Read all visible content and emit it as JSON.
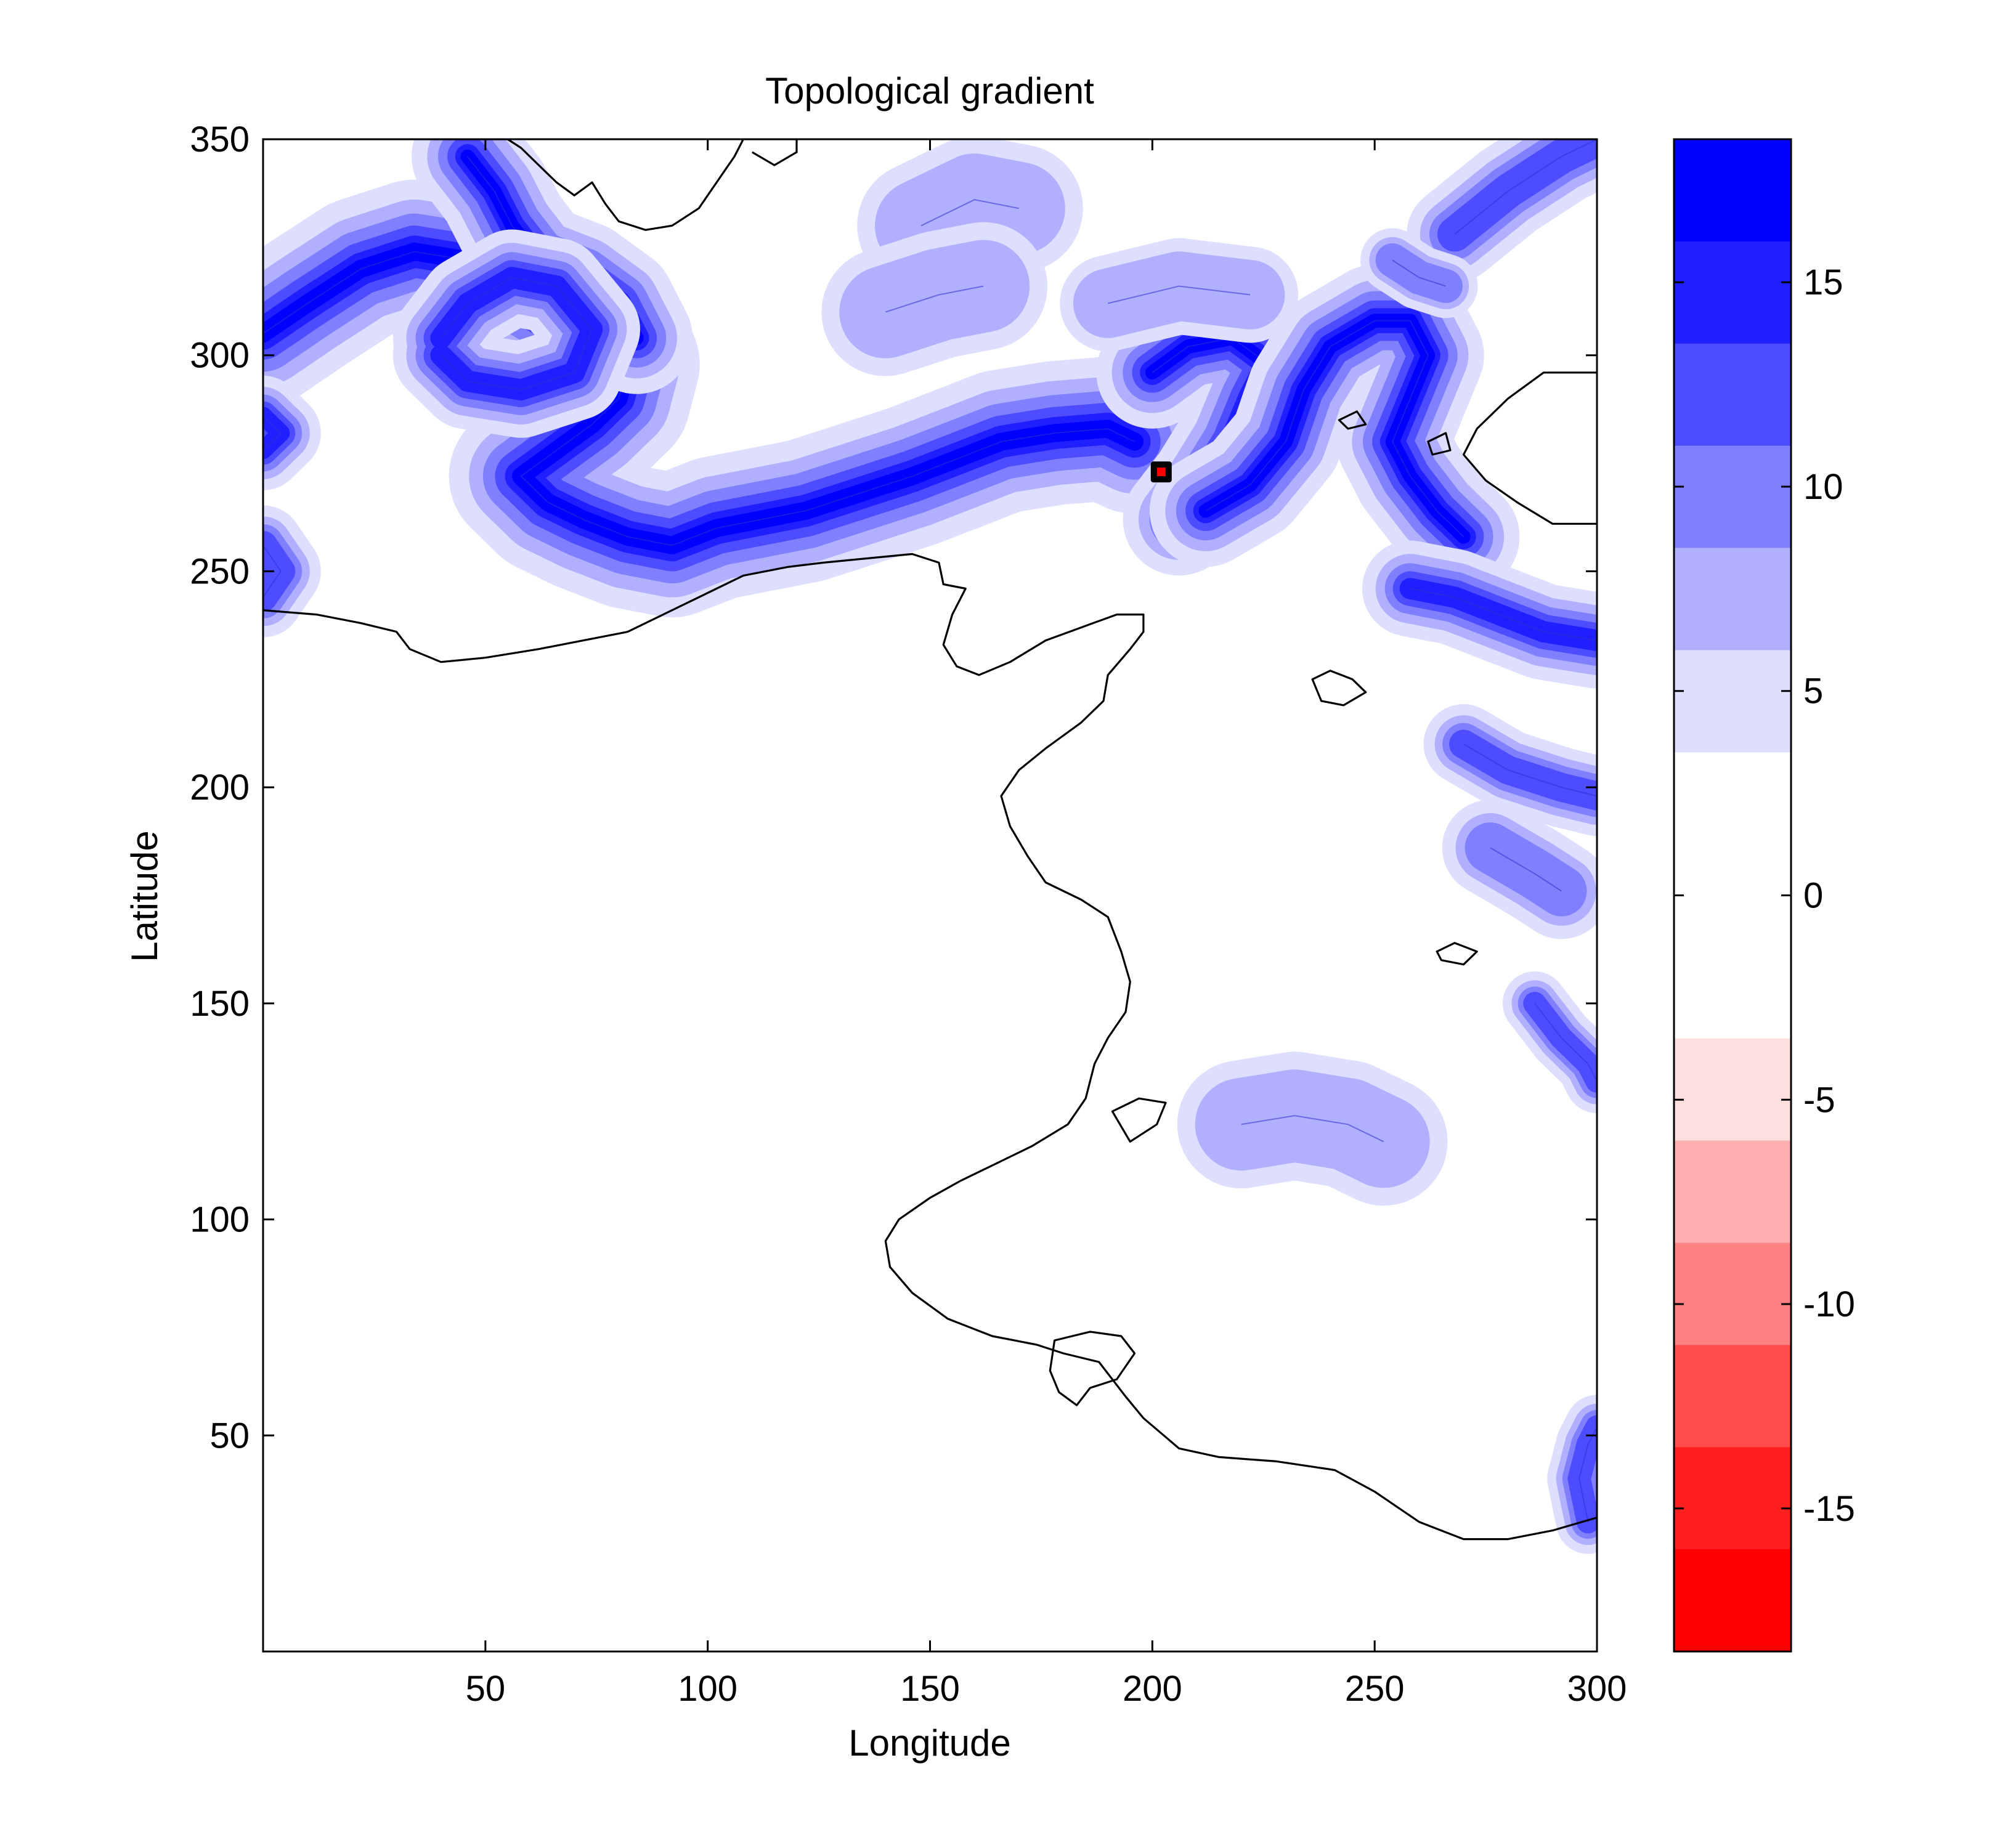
{
  "chart_data": {
    "type": "heatmap",
    "subtype": "filled-contour-map",
    "title": "Topological gradient",
    "xlabel": "Longitude",
    "ylabel": "Latitude",
    "xlim": [
      0,
      300
    ],
    "ylim": [
      0,
      350
    ],
    "xticks": [
      50,
      100,
      150,
      200,
      250,
      300
    ],
    "yticks": [
      50,
      100,
      150,
      200,
      250,
      300,
      350
    ],
    "colorbar": {
      "range": [
        -18.5,
        18.5
      ],
      "ticks": [
        -15,
        -10,
        -5,
        0,
        5,
        10,
        15
      ],
      "levels": [
        {
          "from": 16.0,
          "to": 18.5,
          "color": "#0000ff"
        },
        {
          "from": 13.5,
          "to": 16.0,
          "color": "#1f1fff"
        },
        {
          "from": 11.0,
          "to": 13.5,
          "color": "#4d4dff"
        },
        {
          "from": 8.5,
          "to": 11.0,
          "color": "#8080ff"
        },
        {
          "from": 6.0,
          "to": 8.5,
          "color": "#b0b0ff"
        },
        {
          "from": 3.5,
          "to": 6.0,
          "color": "#dedeff"
        },
        {
          "from": -3.5,
          "to": 3.5,
          "color": "#ffffff"
        },
        {
          "from": -6.0,
          "to": -3.5,
          "color": "#ffdede"
        },
        {
          "from": -8.5,
          "to": -6.0,
          "color": "#ffb0b0"
        },
        {
          "from": -11.0,
          "to": -8.5,
          "color": "#ff8080"
        },
        {
          "from": -13.5,
          "to": -11.0,
          "color": "#ff4d4d"
        },
        {
          "from": -16.0,
          "to": -13.5,
          "color": "#ff1f1f"
        },
        {
          "from": -18.5,
          "to": -16.0,
          "color": "#ff0000"
        }
      ]
    },
    "marker": {
      "x": 202,
      "y": 273,
      "color": "#ff0000"
    },
    "coastline": [
      [
        [
          0,
          241
        ],
        [
          12,
          240
        ],
        [
          22,
          238
        ],
        [
          30,
          236
        ],
        [
          33,
          232
        ],
        [
          40,
          229
        ],
        [
          50,
          230
        ],
        [
          62,
          232
        ],
        [
          72,
          234
        ],
        [
          82,
          236
        ],
        [
          92,
          241
        ],
        [
          100,
          245
        ],
        [
          108,
          249
        ],
        [
          118,
          251
        ],
        [
          126,
          252
        ],
        [
          136,
          253
        ],
        [
          146,
          254
        ],
        [
          152,
          252
        ],
        [
          153,
          247
        ],
        [
          158,
          246
        ],
        [
          155,
          240
        ],
        [
          153,
          233
        ],
        [
          156,
          228
        ],
        [
          161,
          226
        ],
        [
          168,
          229
        ],
        [
          176,
          234
        ],
        [
          184,
          237
        ],
        [
          192,
          240
        ],
        [
          198,
          240
        ],
        [
          198,
          236
        ],
        [
          195,
          232
        ],
        [
          190,
          226
        ],
        [
          189,
          220
        ],
        [
          184,
          215
        ],
        [
          176,
          209
        ],
        [
          170,
          204
        ],
        [
          166,
          198
        ],
        [
          168,
          191
        ],
        [
          172,
          184
        ],
        [
          176,
          178
        ],
        [
          184,
          174
        ],
        [
          190,
          170
        ],
        [
          193,
          162
        ],
        [
          195,
          155
        ],
        [
          194,
          148
        ],
        [
          190,
          142
        ],
        [
          187,
          136
        ],
        [
          185,
          128
        ],
        [
          181,
          122
        ],
        [
          173,
          117
        ],
        [
          165,
          113
        ],
        [
          157,
          109
        ],
        [
          150,
          105
        ],
        [
          143,
          100
        ],
        [
          140,
          95
        ],
        [
          141,
          89
        ],
        [
          146,
          83
        ],
        [
          154,
          77
        ],
        [
          164,
          73
        ],
        [
          174,
          71
        ],
        [
          180,
          69
        ],
        [
          188,
          67
        ],
        [
          194,
          59
        ],
        [
          198,
          54
        ],
        [
          206,
          47
        ],
        [
          215,
          45
        ],
        [
          228,
          44
        ],
        [
          241,
          42
        ],
        [
          250,
          37
        ],
        [
          260,
          30
        ],
        [
          270,
          26
        ],
        [
          280,
          26
        ],
        [
          290,
          28
        ],
        [
          300,
          31
        ]
      ],
      [
        [
          0,
          350
        ],
        [
          55,
          350
        ],
        [
          58,
          348
        ],
        [
          62,
          344
        ],
        [
          66,
          340
        ],
        [
          70,
          337
        ],
        [
          74,
          340
        ],
        [
          77,
          335
        ],
        [
          80,
          331
        ],
        [
          86,
          329
        ],
        [
          92,
          330
        ],
        [
          98,
          334
        ],
        [
          102,
          340
        ],
        [
          106,
          346
        ],
        [
          108,
          350
        ],
        [
          120,
          350
        ],
        [
          120,
          347
        ],
        [
          115,
          344
        ],
        [
          110,
          347
        ]
      ],
      [
        [
          300,
          296
        ],
        [
          288,
          296
        ],
        [
          280,
          290
        ],
        [
          273,
          283
        ],
        [
          270,
          277
        ],
        [
          275,
          271
        ],
        [
          282,
          266
        ],
        [
          290,
          261
        ],
        [
          300,
          261
        ]
      ],
      [
        [
          236,
          225
        ],
        [
          240,
          227
        ],
        [
          245,
          225
        ],
        [
          248,
          222
        ],
        [
          243,
          219
        ],
        [
          238,
          220
        ]
      ],
      [
        [
          264,
          162
        ],
        [
          268,
          164
        ],
        [
          273,
          162
        ],
        [
          270,
          159
        ],
        [
          265,
          160
        ]
      ],
      [
        [
          191,
          125
        ],
        [
          197,
          128
        ],
        [
          203,
          127
        ],
        [
          201,
          122
        ],
        [
          195,
          118
        ]
      ],
      [
        [
          178,
          72
        ],
        [
          186,
          74
        ],
        [
          193,
          73
        ],
        [
          196,
          69
        ],
        [
          192,
          63
        ],
        [
          186,
          61
        ],
        [
          183,
          57
        ],
        [
          179,
          60
        ],
        [
          177,
          65
        ]
      ],
      [
        [
          262,
          280
        ],
        [
          266,
          282
        ],
        [
          267,
          278
        ],
        [
          263,
          277
        ]
      ],
      [
        [
          242,
          285
        ],
        [
          246,
          287
        ],
        [
          248,
          284
        ],
        [
          244,
          283
        ]
      ]
    ],
    "bands": [
      {
        "strength": 1.0,
        "width": 9,
        "points": [
          [
            0,
            305
          ],
          [
            10,
            312
          ],
          [
            22,
            320
          ],
          [
            34,
            324
          ],
          [
            46,
            322
          ],
          [
            54,
            316
          ],
          [
            64,
            310
          ],
          [
            76,
            306
          ],
          [
            82,
            298
          ],
          [
            80,
            290
          ],
          [
            74,
            284
          ],
          [
            66,
            278
          ],
          [
            58,
            272
          ],
          [
            64,
            266
          ],
          [
            72,
            262
          ],
          [
            82,
            258
          ],
          [
            92,
            256
          ],
          [
            102,
            260
          ],
          [
            112,
            262
          ],
          [
            122,
            264
          ],
          [
            134,
            268
          ],
          [
            146,
            272
          ],
          [
            156,
            276
          ],
          [
            166,
            280
          ],
          [
            178,
            282
          ],
          [
            190,
            283
          ],
          [
            196,
            280
          ]
        ]
      },
      {
        "strength": 1.0,
        "width": 7,
        "points": [
          [
            46,
            346
          ],
          [
            52,
            338
          ],
          [
            56,
            330
          ],
          [
            62,
            322
          ],
          [
            72,
            318
          ],
          [
            80,
            312
          ],
          [
            84,
            304
          ]
        ]
      },
      {
        "strength": 0.9,
        "width": 6,
        "points": [
          [
            40,
            304
          ],
          [
            46,
            312
          ],
          [
            56,
            318
          ],
          [
            66,
            316
          ],
          [
            74,
            306
          ],
          [
            70,
            296
          ],
          [
            58,
            292
          ],
          [
            46,
            294
          ],
          [
            40,
            300
          ]
        ]
      },
      {
        "strength": 0.95,
        "width": 7,
        "points": [
          [
            206,
            262
          ],
          [
            212,
            270
          ],
          [
            218,
            280
          ],
          [
            222,
            290
          ],
          [
            226,
            298
          ],
          [
            218,
            304
          ],
          [
            208,
            302
          ],
          [
            200,
            296
          ]
        ]
      },
      {
        "strength": 0.95,
        "width": 7,
        "points": [
          [
            212,
            264
          ],
          [
            222,
            270
          ],
          [
            230,
            280
          ],
          [
            234,
            292
          ],
          [
            240,
            302
          ],
          [
            250,
            308
          ],
          [
            258,
            308
          ],
          [
            262,
            300
          ],
          [
            258,
            290
          ],
          [
            254,
            280
          ],
          [
            258,
            272
          ],
          [
            264,
            264
          ],
          [
            270,
            258
          ]
        ]
      },
      {
        "strength": 0.85,
        "width": 6,
        "points": [
          [
            258,
            246
          ],
          [
            268,
            244
          ],
          [
            278,
            240
          ],
          [
            288,
            236
          ],
          [
            300,
            234
          ]
        ]
      },
      {
        "strength": 0.7,
        "width": 6,
        "points": [
          [
            268,
            328
          ],
          [
            280,
            338
          ],
          [
            292,
            346
          ],
          [
            300,
            350
          ]
        ]
      },
      {
        "strength": 0.75,
        "width": 5,
        "points": [
          [
            0,
            278
          ],
          [
            4,
            282
          ],
          [
            0,
            286
          ]
        ]
      },
      {
        "strength": 0.7,
        "width": 5,
        "points": [
          [
            0,
            244
          ],
          [
            4,
            250
          ],
          [
            0,
            256
          ]
        ]
      },
      {
        "strength": 0.6,
        "width": 5,
        "points": [
          [
            270,
            210
          ],
          [
            280,
            204
          ],
          [
            292,
            200
          ],
          [
            300,
            198
          ]
        ]
      },
      {
        "strength": 0.6,
        "width": 4,
        "points": [
          [
            286,
            150
          ],
          [
            292,
            142
          ],
          [
            298,
            136
          ],
          [
            300,
            132
          ]
        ]
      },
      {
        "strength": 0.65,
        "width": 4,
        "points": [
          [
            298,
            30
          ],
          [
            296,
            40
          ],
          [
            298,
            48
          ],
          [
            300,
            52
          ]
        ]
      },
      {
        "strength": 0.55,
        "width": 4,
        "points": [
          [
            254,
            322
          ],
          [
            260,
            318
          ],
          [
            266,
            316
          ]
        ]
      },
      {
        "strength": 0.35,
        "width": 8,
        "points": [
          [
            220,
            122
          ],
          [
            232,
            124
          ],
          [
            244,
            122
          ],
          [
            252,
            118
          ]
        ]
      },
      {
        "strength": 0.3,
        "width": 8,
        "points": [
          [
            148,
            330
          ],
          [
            160,
            336
          ],
          [
            170,
            334
          ]
        ]
      },
      {
        "strength": 0.3,
        "width": 8,
        "points": [
          [
            140,
            310
          ],
          [
            152,
            314
          ],
          [
            162,
            316
          ]
        ]
      },
      {
        "strength": 0.4,
        "width": 6,
        "points": [
          [
            190,
            312
          ],
          [
            206,
            316
          ],
          [
            222,
            314
          ]
        ]
      },
      {
        "strength": 0.45,
        "width": 6,
        "points": [
          [
            276,
            186
          ],
          [
            286,
            180
          ],
          [
            292,
            176
          ]
        ]
      }
    ]
  }
}
